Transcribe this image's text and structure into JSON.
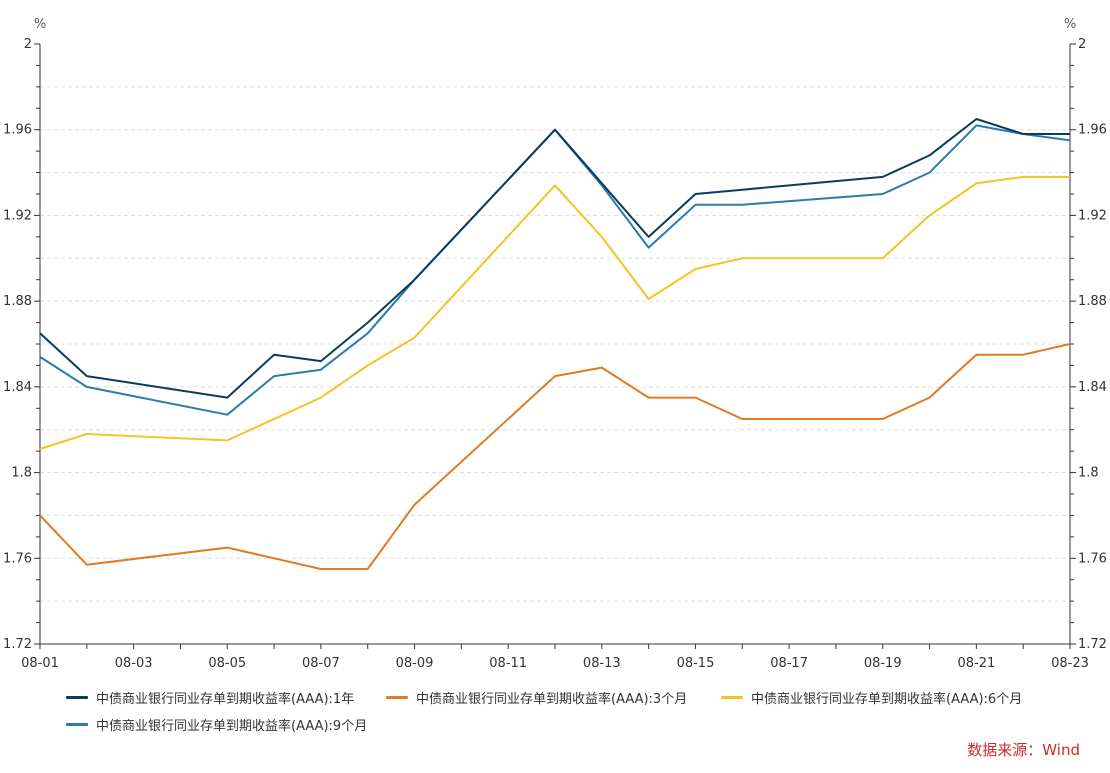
{
  "chart_data": {
    "type": "line",
    "x": [
      "08-01",
      "08-02",
      "08-05",
      "08-06",
      "08-07",
      "08-08",
      "08-09",
      "08-12",
      "08-13",
      "08-14",
      "08-15",
      "08-16",
      "08-19",
      "08-20",
      "08-21",
      "08-22",
      "08-23"
    ],
    "x_tick_labels": [
      "08-01",
      "08-03",
      "08-05",
      "08-07",
      "08-09",
      "08-11",
      "08-13",
      "08-15",
      "08-17",
      "08-19",
      "08-21",
      "08-23"
    ],
    "y_tick_labels": [
      "1.72",
      "1.76",
      "1.8",
      "1.84",
      "1.88",
      "1.92",
      "1.96",
      "2"
    ],
    "ylim": [
      1.72,
      2.0
    ],
    "y_unit": "%",
    "grid": "horizontal dashed",
    "legend_position": "bottom",
    "series": [
      {
        "name": "中债商业银行同业存单到期收益率(AAA):1年",
        "color": "#0d3b5c",
        "values": [
          1.865,
          1.845,
          1.835,
          1.855,
          1.852,
          1.87,
          1.89,
          1.96,
          1.935,
          1.91,
          1.93,
          1.932,
          1.938,
          1.948,
          1.965,
          1.958,
          1.958
        ]
      },
      {
        "name": "中债商业银行同业存单到期收益率(AAA):3个月",
        "color": "#e07b22",
        "values": [
          1.78,
          1.757,
          1.765,
          1.76,
          1.755,
          1.755,
          1.785,
          1.845,
          1.849,
          1.835,
          1.835,
          1.825,
          1.825,
          1.835,
          1.855,
          1.855,
          1.86
        ]
      },
      {
        "name": "中债商业银行同业存单到期收益率(AAA):6个月",
        "color": "#f5c322",
        "values": [
          1.811,
          1.818,
          1.815,
          1.825,
          1.835,
          1.85,
          1.863,
          1.934,
          1.91,
          1.881,
          1.895,
          1.9,
          1.9,
          1.92,
          1.935,
          1.938,
          1.938
        ]
      },
      {
        "name": "中债商业银行同业存单到期收益率(AAA):9个月",
        "color": "#2a7bb0",
        "values": [
          1.854,
          1.84,
          1.827,
          1.845,
          1.848,
          1.865,
          1.89,
          1.96,
          1.934,
          1.905,
          1.925,
          1.925,
          1.93,
          1.94,
          1.962,
          1.958,
          1.955
        ]
      }
    ]
  },
  "source": "数据来源：Wind"
}
